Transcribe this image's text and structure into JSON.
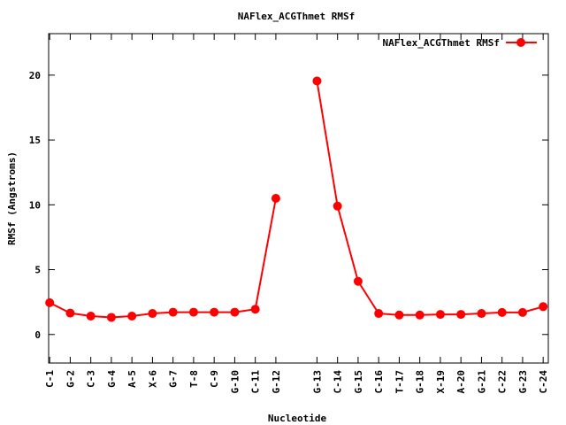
{
  "chart_data": {
    "type": "line",
    "title": "NAFlex_ACGThmet RMSf",
    "xlabel": "Nucleotide",
    "ylabel": "RMSf (Angstroms)",
    "ylim": [
      -2.2,
      23.2
    ],
    "yticks": [
      0,
      5,
      10,
      15,
      20
    ],
    "grid": false,
    "legend_position": "top-right",
    "x_tick_labels": [
      "C-1",
      "G-2",
      "C-3",
      "G-4",
      "A-5",
      "X-6",
      "G-7",
      "T-8",
      "C-9",
      "G-10",
      "C-11",
      "G-12",
      "G-13",
      "C-14",
      "G-15",
      "C-16",
      "T-17",
      "G-18",
      "X-19",
      "A-20",
      "G-21",
      "C-22",
      "G-23",
      "C-24"
    ],
    "color": "#ff0000",
    "series": [
      {
        "name": "NAFlex_ACGThmet RMSf",
        "segments": [
          {
            "x": [
              1,
              2,
              3,
              4,
              5,
              6,
              7,
              8,
              9,
              10,
              11,
              12
            ],
            "y": [
              2.45,
              1.65,
              1.42,
              1.32,
              1.42,
              1.62,
              1.72,
              1.72,
              1.72,
              1.72,
              1.95,
              10.5
            ]
          },
          {
            "x": [
              14,
              15,
              16,
              17,
              18,
              19,
              20,
              21,
              22,
              23,
              24,
              25
            ],
            "y": [
              19.55,
              9.9,
              4.1,
              1.62,
              1.5,
              1.5,
              1.55,
              1.55,
              1.62,
              1.7,
              1.7,
              2.15
            ]
          }
        ]
      }
    ],
    "x_positions": [
      1,
      2,
      3,
      4,
      5,
      6,
      7,
      8,
      9,
      10,
      11,
      12,
      14,
      15,
      16,
      17,
      18,
      19,
      20,
      21,
      22,
      23,
      24,
      25
    ]
  }
}
